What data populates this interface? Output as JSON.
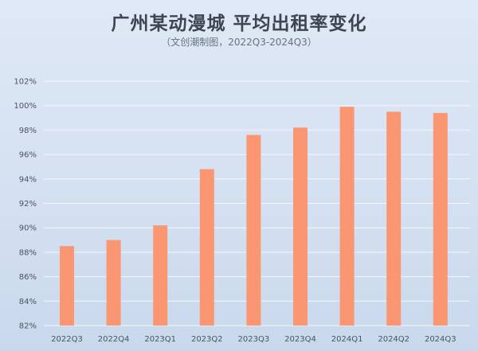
{
  "chart_data": {
    "type": "bar",
    "title": "广州某动漫城 平均出租率变化",
    "subtitle": "（文创潮制图，2022Q3-2024Q3）",
    "xlabel": "",
    "ylabel": "",
    "categories": [
      "2022Q3",
      "2022Q4",
      "2023Q1",
      "2023Q2",
      "2023Q3",
      "2023Q4",
      "2024Q1",
      "2024Q2",
      "2024Q3"
    ],
    "values": [
      88.5,
      89.0,
      90.2,
      94.8,
      97.6,
      98.2,
      99.9,
      99.5,
      99.4
    ],
    "unit": "%",
    "ylim": [
      82,
      102
    ],
    "yticks": [
      82,
      84,
      86,
      88,
      90,
      92,
      94,
      96,
      98,
      100,
      102
    ],
    "ytick_labels": [
      "82%",
      "84%",
      "86%",
      "88%",
      "90%",
      "92%",
      "94%",
      "96%",
      "98%",
      "100%",
      "102%"
    ],
    "grid": true,
    "legend": "none",
    "colors": {
      "bar": "#fa9672",
      "grid": "#f4f7fb",
      "background": "#d6e2f2"
    }
  }
}
